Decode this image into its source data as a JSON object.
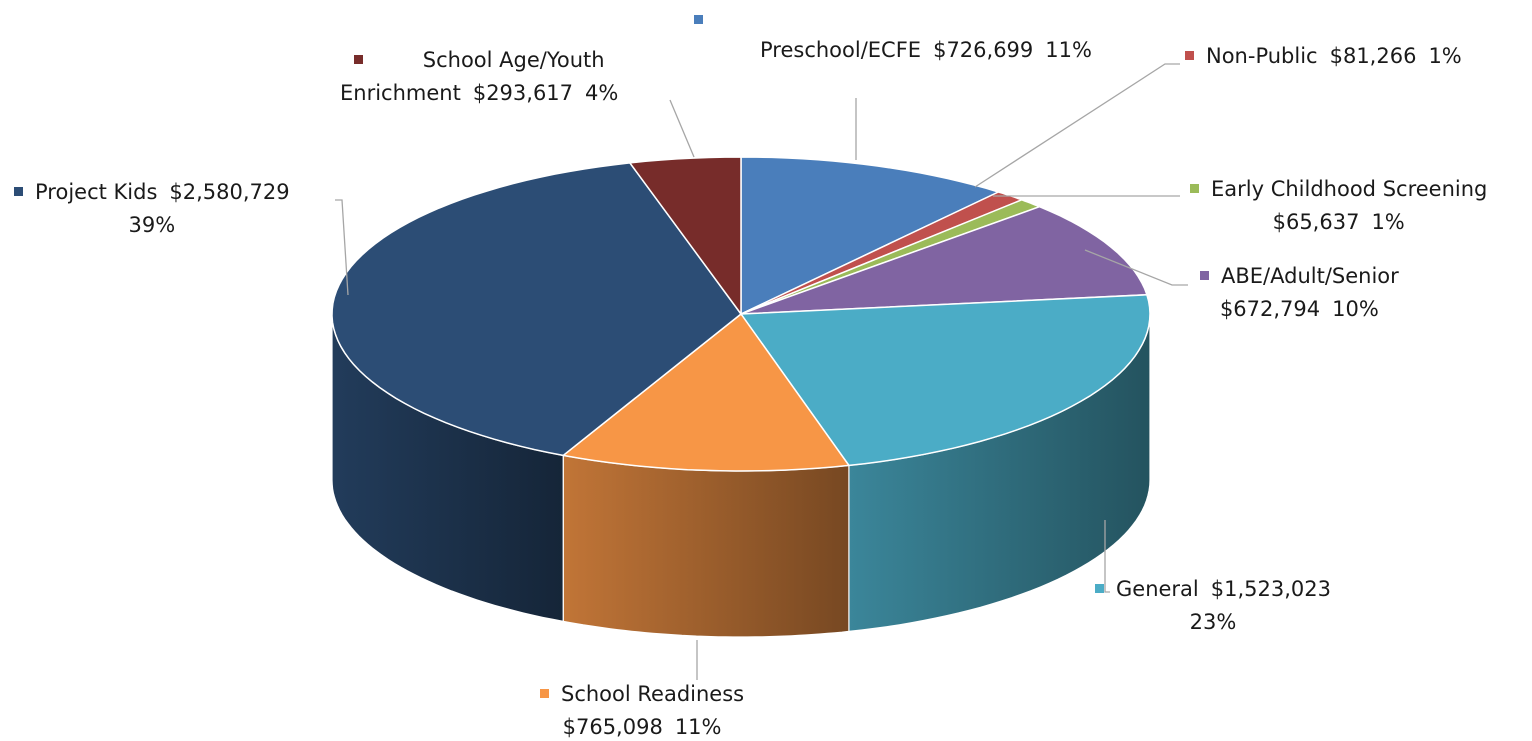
{
  "chart_data": {
    "type": "pie",
    "title": "",
    "slices": [
      {
        "name": "Preschool/ECFE",
        "amount": "$726,699",
        "pct": "11%",
        "value": 726699,
        "color": "#4a7ebb"
      },
      {
        "name": "Non-Public",
        "amount": "$81,266",
        "pct": "1%",
        "value": 81266,
        "color": "#c0504d"
      },
      {
        "name": "Early Childhood Screening",
        "amount": "$65,637",
        "pct": "1%",
        "value": 65637,
        "color": "#9bbb59"
      },
      {
        "name": "ABE/Adult/Senior",
        "amount": "$672,794",
        "pct": "10%",
        "value": 672794,
        "color": "#8064a2"
      },
      {
        "name": "General",
        "amount": "$1,523,023",
        "pct": "23%",
        "value": 1523023,
        "color": "#4bacc6"
      },
      {
        "name": "School Readiness",
        "amount": "$765,098",
        "pct": "11%",
        "value": 765098,
        "color": "#f79646"
      },
      {
        "name": "Project Kids",
        "amount": "$2,580,729",
        "pct": "39%",
        "value": 2580729,
        "color": "#2c4d75"
      },
      {
        "name": "School Age/Youth Enrichment",
        "name_line1": "School Age/Youth",
        "name_line2": "Enrichment",
        "amount": "$293,617",
        "pct": "4%",
        "value": 293617,
        "color": "#772c2a"
      }
    ],
    "legend": "none",
    "style": "3d-pie",
    "data_labels": "name, value, percent"
  }
}
